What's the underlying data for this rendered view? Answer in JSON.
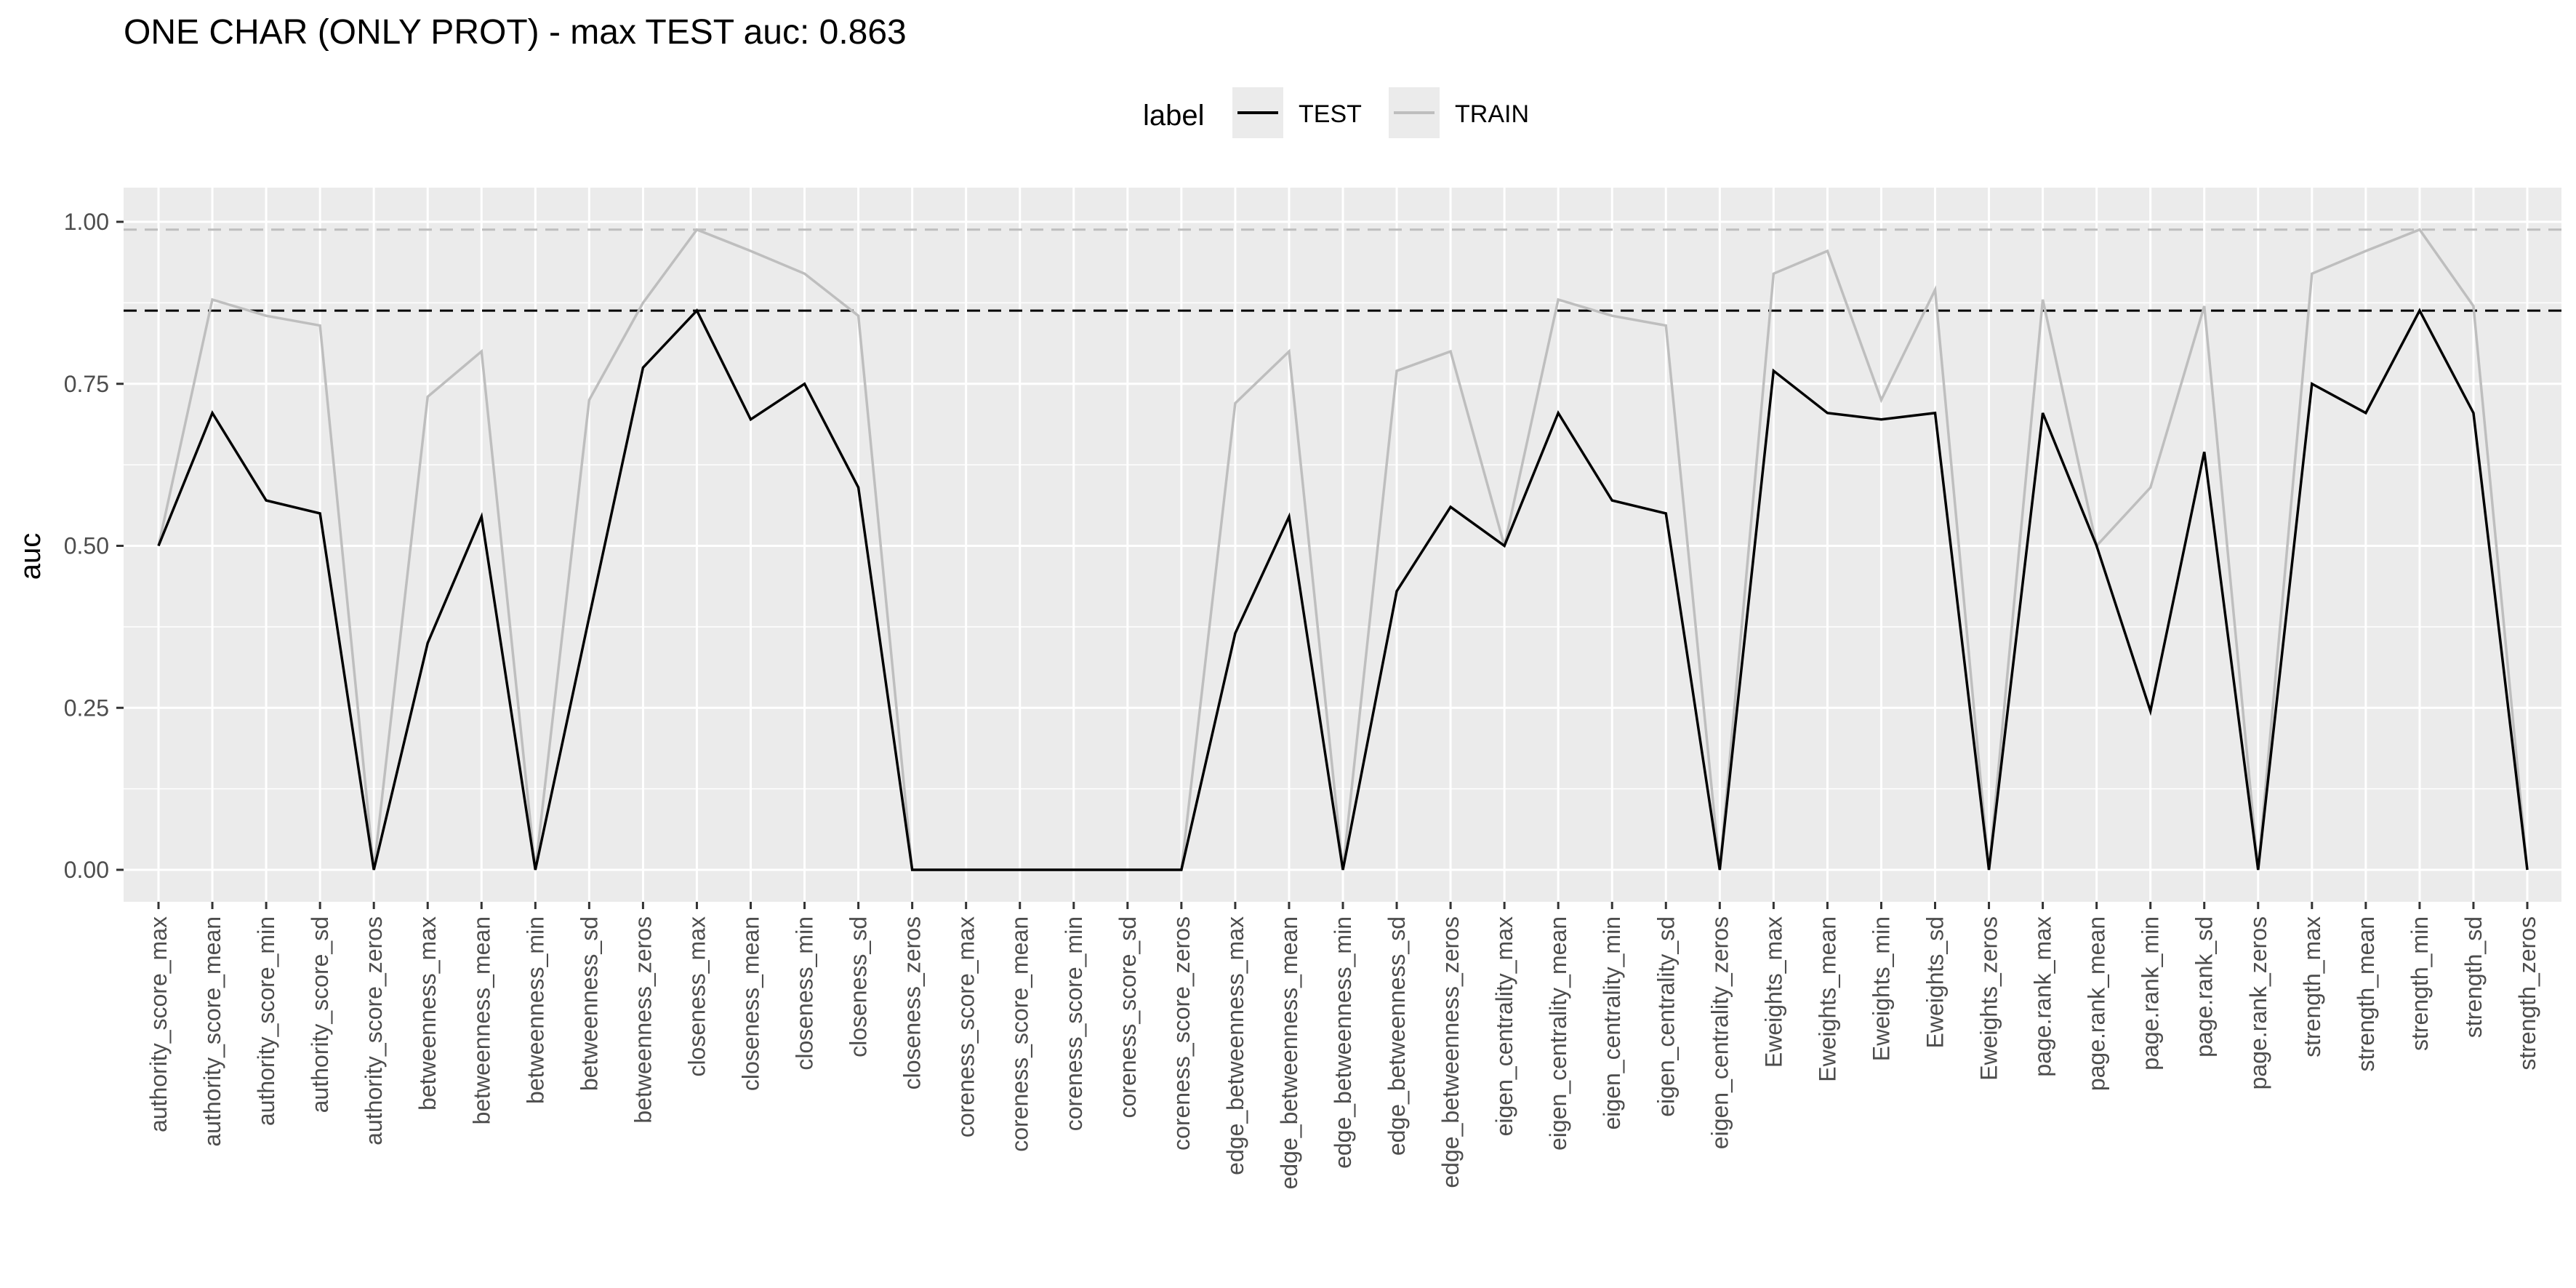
{
  "chart_data": {
    "type": "line",
    "title": "ONE CHAR (ONLY PROT) - max TEST auc: 0.863",
    "xlabel": "",
    "ylabel": "auc",
    "ylim": [
      0,
      1
    ],
    "y_ticks": [
      "0.00",
      "0.25",
      "0.50",
      "0.75",
      "1.00"
    ],
    "grid": true,
    "legend": {
      "title": "label",
      "placement": "top",
      "entries": [
        "TEST",
        "TRAIN"
      ]
    },
    "categories": [
      "authority_score_max",
      "authority_score_mean",
      "authority_score_min",
      "authority_score_sd",
      "authority_score_zeros",
      "betweenness_max",
      "betweenness_mean",
      "betweenness_min",
      "betweenness_sd",
      "betweenness_zeros",
      "closeness_max",
      "closeness_mean",
      "closeness_min",
      "closeness_sd",
      "closeness_zeros",
      "coreness_score_max",
      "coreness_score_mean",
      "coreness_score_min",
      "coreness_score_sd",
      "coreness_score_zeros",
      "edge_betweenness_max",
      "edge_betweenness_mean",
      "edge_betweenness_min",
      "edge_betweenness_sd",
      "edge_betweenness_zeros",
      "eigen_centrality_max",
      "eigen_centrality_mean",
      "eigen_centrality_min",
      "eigen_centrality_sd",
      "eigen_centrality_zeros",
      "Eweights_max",
      "Eweights_mean",
      "Eweights_min",
      "Eweights_sd",
      "Eweights_zeros",
      "page.rank_max",
      "page.rank_mean",
      "page.rank_min",
      "page.rank_sd",
      "page.rank_zeros",
      "strength_max",
      "strength_mean",
      "strength_min",
      "strength_sd",
      "strength_zeros"
    ],
    "series": [
      {
        "name": "TEST",
        "color": "#000000",
        "values": [
          0.5,
          0.705,
          0.57,
          0.55,
          0.0,
          0.35,
          0.545,
          0.0,
          0.39,
          0.775,
          0.863,
          0.695,
          0.75,
          0.59,
          0.0,
          0.0,
          0.0,
          0.0,
          0.0,
          0.0,
          0.365,
          0.545,
          0.0,
          0.43,
          0.56,
          0.5,
          0.705,
          0.57,
          0.55,
          0.0,
          0.77,
          0.705,
          0.695,
          0.705,
          0.0,
          0.705,
          0.5,
          0.245,
          0.645,
          0.0,
          0.75,
          0.705,
          0.863,
          0.705,
          0.0
        ]
      },
      {
        "name": "TRAIN",
        "color": "#bebebe",
        "values": [
          0.5,
          0.88,
          0.855,
          0.84,
          0.0,
          0.73,
          0.8,
          0.0,
          0.725,
          0.875,
          0.988,
          0.955,
          0.92,
          0.855,
          0.0,
          0.0,
          0.0,
          0.0,
          0.0,
          0.0,
          0.72,
          0.8,
          0.0,
          0.77,
          0.8,
          0.5,
          0.88,
          0.855,
          0.84,
          0.0,
          0.92,
          0.955,
          0.725,
          0.895,
          0.0,
          0.88,
          0.5,
          0.59,
          0.87,
          0.0,
          0.92,
          0.955,
          0.988,
          0.87,
          0.0
        ]
      }
    ],
    "reference_lines": [
      {
        "series": "TEST",
        "value": 0.863,
        "color": "#000000",
        "style": "dashed"
      },
      {
        "series": "TRAIN",
        "value": 0.988,
        "color": "#bebebe",
        "style": "dashed"
      }
    ],
    "colors": {
      "panel_bg": "#ebebeb",
      "grid": "#ffffff",
      "legend_key_bg": "#ebebeb",
      "tick_text": "#4d4d4d"
    }
  }
}
